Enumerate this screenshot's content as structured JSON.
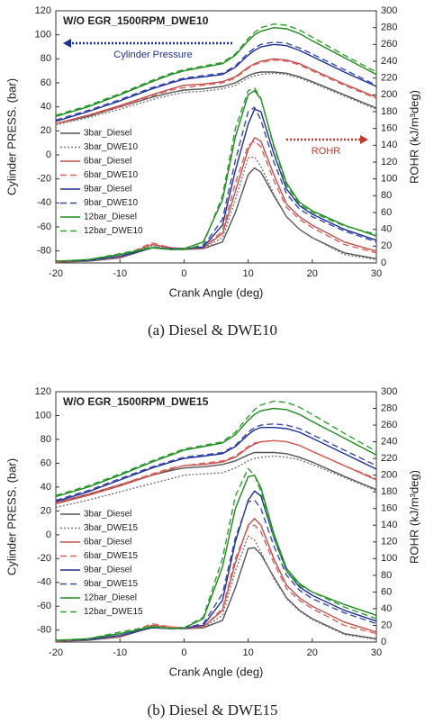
{
  "chart_data": [
    {
      "type": "line",
      "title": "W/O EGR_1500RPM_DWE10",
      "caption": "(a)  Diesel & DWE10",
      "x_label": "Crank Angle (deg)",
      "y_label": "Cylinder PRESS. (bar)",
      "y2_label": "ROHR (kJ/m³deg)",
      "xlim": [
        -20,
        30
      ],
      "xticks": [
        -20,
        -10,
        0,
        10,
        20,
        30
      ],
      "ylim": [
        -90,
        120
      ],
      "yticks": [
        -80,
        -60,
        -40,
        -20,
        0,
        20,
        40,
        60,
        80,
        100,
        120
      ],
      "y2lim": [
        0,
        300
      ],
      "y2ticks": [
        0,
        20,
        40,
        60,
        80,
        100,
        120,
        140,
        160,
        180,
        200,
        220,
        240,
        260,
        280,
        300
      ],
      "grid": false,
      "legend": "left",
      "annotations": [
        {
          "text": "Cylinder Pressure",
          "color": "#1f2f9a",
          "direction": "left"
        },
        {
          "text": "ROHR",
          "color": "#c0392b",
          "direction": "right"
        }
      ],
      "x": [
        -20,
        -15,
        -10,
        -5,
        -2,
        0,
        3,
        6,
        8,
        10,
        11,
        12,
        14,
        16,
        18,
        20,
        25,
        30
      ],
      "series": [
        {
          "name": "3bar_Diesel",
          "color": "#555555",
          "dash": "solid",
          "values": [
            26,
            32,
            40,
            48,
            52,
            54,
            55,
            57,
            60,
            66,
            68,
            69,
            69,
            68,
            65,
            61,
            50,
            39
          ],
          "y2_values": [
            1,
            2,
            6,
            18,
            16,
            16,
            17,
            25,
            60,
            105,
            113,
            108,
            80,
            55,
            40,
            30,
            12,
            5
          ]
        },
        {
          "name": "3bar_DWE10",
          "color": "#777777",
          "dash": "dotted",
          "values": [
            25,
            31,
            38,
            46,
            50,
            52,
            53,
            55,
            58,
            64,
            66,
            67,
            68,
            67,
            64,
            60,
            49,
            38
          ],
          "y2_values": [
            1,
            2,
            6,
            20,
            17,
            16,
            17,
            30,
            75,
            125,
            126,
            115,
            82,
            55,
            40,
            30,
            10,
            4
          ]
        },
        {
          "name": "6bar_Diesel",
          "color": "#c0504d",
          "dash": "solid",
          "values": [
            26,
            33,
            41,
            50,
            55,
            58,
            59,
            61,
            65,
            73,
            76,
            78,
            80,
            79,
            76,
            71,
            59,
            48
          ],
          "y2_values": [
            1,
            3,
            7,
            22,
            18,
            17,
            18,
            35,
            85,
            135,
            149,
            145,
            105,
            70,
            55,
            45,
            25,
            14
          ]
        },
        {
          "name": "6bar_DWE10",
          "color": "#e0605a",
          "dash": "dashed",
          "values": [
            26,
            33,
            40,
            49,
            54,
            56,
            58,
            60,
            64,
            72,
            75,
            77,
            79,
            78,
            75,
            70,
            58,
            47
          ],
          "y2_values": [
            1,
            3,
            7,
            24,
            18,
            17,
            18,
            38,
            95,
            140,
            145,
            138,
            98,
            66,
            52,
            42,
            22,
            12
          ]
        },
        {
          "name": "9bar_Diesel",
          "color": "#1f2f9a",
          "dash": "solid",
          "values": [
            28,
            36,
            45,
            55,
            60,
            63,
            65,
            67,
            73,
            83,
            87,
            90,
            92,
            91,
            87,
            82,
            69,
            57
          ],
          "y2_values": [
            2,
            3,
            8,
            18,
            17,
            17,
            19,
            45,
            110,
            165,
            183,
            180,
            130,
            88,
            68,
            58,
            40,
            27
          ]
        },
        {
          "name": "9bar_DWE10",
          "color": "#3a4aaa",
          "dash": "dashed",
          "values": [
            29,
            37,
            46,
            56,
            61,
            64,
            66,
            68,
            74,
            85,
            89,
            92,
            94,
            93,
            89,
            84,
            71,
            58
          ],
          "y2_values": [
            2,
            3,
            8,
            19,
            17,
            17,
            20,
            52,
            122,
            180,
            185,
            170,
            120,
            82,
            64,
            55,
            38,
            25
          ]
        },
        {
          "name": "12bar_Diesel",
          "color": "#1e8a1e",
          "dash": "solid",
          "values": [
            32,
            40,
            50,
            61,
            67,
            70,
            73,
            76,
            83,
            95,
            100,
            103,
            106,
            105,
            101,
            95,
            81,
            67
          ],
          "y2_values": [
            2,
            4,
            10,
            18,
            16,
            17,
            25,
            75,
            150,
            200,
            205,
            195,
            140,
            95,
            72,
            62,
            45,
            32
          ]
        },
        {
          "name": "12bar_DWE10",
          "color": "#2ea02e",
          "dash": "dashed",
          "values": [
            33,
            41,
            51,
            62,
            68,
            71,
            74,
            77,
            84,
            97,
            102,
            106,
            109,
            108,
            104,
            98,
            83,
            69
          ],
          "y2_values": [
            2,
            4,
            11,
            19,
            16,
            16,
            22,
            80,
            160,
            205,
            208,
            196,
            138,
            92,
            70,
            60,
            44,
            34
          ]
        }
      ]
    },
    {
      "type": "line",
      "title": "W/O EGR_1500RPM_DWE15",
      "caption": "(b)  Diesel & DWE15",
      "x_label": "Crank Angle (deg)",
      "y_label": "Cylinder PRESS. (bar)",
      "y2_label": "ROHR (kJ/m³deg)",
      "xlim": [
        -20,
        30
      ],
      "xticks": [
        -20,
        -10,
        0,
        10,
        20,
        30
      ],
      "ylim": [
        -90,
        120
      ],
      "yticks": [
        -80,
        -60,
        -40,
        -20,
        0,
        20,
        40,
        60,
        80,
        100,
        120
      ],
      "y2lim": [
        0,
        300
      ],
      "y2ticks": [
        0,
        20,
        40,
        60,
        80,
        100,
        120,
        140,
        160,
        180,
        200,
        220,
        240,
        260,
        280,
        300
      ],
      "grid": false,
      "legend": "left",
      "x": [
        -20,
        -15,
        -10,
        -5,
        -2,
        0,
        3,
        6,
        8,
        10,
        11,
        12,
        14,
        16,
        18,
        20,
        25,
        30
      ],
      "series": [
        {
          "name": "3bar_Diesel",
          "color": "#555555",
          "dash": "solid",
          "values": [
            27,
            34,
            42,
            50,
            54,
            56,
            57,
            59,
            62,
            67,
            69,
            69,
            69,
            68,
            65,
            61,
            49,
            38
          ],
          "y2_values": [
            1,
            2,
            6,
            18,
            16,
            16,
            17,
            26,
            65,
            112,
            113,
            105,
            78,
            53,
            38,
            28,
            10,
            4
          ]
        },
        {
          "name": "3bar_DWE15",
          "color": "#777777",
          "dash": "dotted",
          "values": [
            23,
            29,
            36,
            43,
            47,
            50,
            51,
            52,
            56,
            62,
            64,
            65,
            66,
            65,
            63,
            59,
            48,
            37
          ],
          "y2_values": [
            1,
            2,
            6,
            20,
            17,
            16,
            17,
            32,
            85,
            127,
            122,
            108,
            76,
            52,
            37,
            27,
            9,
            3
          ]
        },
        {
          "name": "6bar_Diesel",
          "color": "#c0504d",
          "dash": "solid",
          "values": [
            26,
            33,
            41,
            50,
            55,
            58,
            59,
            61,
            65,
            73,
            76,
            78,
            79,
            78,
            75,
            70,
            58,
            46
          ],
          "y2_values": [
            1,
            3,
            7,
            20,
            18,
            17,
            18,
            38,
            95,
            140,
            148,
            140,
            100,
            68,
            53,
            43,
            24,
            12
          ]
        },
        {
          "name": "6bar_DWE15",
          "color": "#e0605a",
          "dash": "dashed",
          "values": [
            27,
            34,
            42,
            51,
            56,
            58,
            60,
            62,
            66,
            74,
            77,
            78,
            79,
            78,
            75,
            70,
            58,
            47
          ],
          "y2_values": [
            1,
            3,
            7,
            22,
            18,
            17,
            18,
            40,
            100,
            138,
            140,
            132,
            95,
            64,
            50,
            40,
            20,
            10
          ]
        },
        {
          "name": "9bar_Diesel",
          "color": "#1f2f9a",
          "dash": "solid",
          "values": [
            28,
            36,
            46,
            56,
            61,
            64,
            66,
            68,
            74,
            84,
            88,
            90,
            90,
            89,
            86,
            81,
            68,
            55
          ],
          "y2_values": [
            2,
            3,
            8,
            17,
            16,
            17,
            20,
            50,
            120,
            170,
            181,
            175,
            125,
            85,
            66,
            56,
            38,
            25
          ]
        },
        {
          "name": "9bar_DWE15",
          "color": "#3a4aaa",
          "dash": "dashed",
          "values": [
            29,
            37,
            47,
            57,
            62,
            65,
            67,
            69,
            75,
            86,
            90,
            92,
            93,
            92,
            89,
            84,
            71,
            58
          ],
          "y2_values": [
            2,
            3,
            8,
            18,
            16,
            17,
            22,
            58,
            125,
            168,
            170,
            160,
            115,
            80,
            62,
            52,
            35,
            22
          ]
        },
        {
          "name": "12bar_Diesel",
          "color": "#1e8a1e",
          "dash": "solid",
          "values": [
            32,
            40,
            50,
            61,
            67,
            71,
            74,
            77,
            84,
            96,
            101,
            104,
            106,
            105,
            101,
            95,
            81,
            67
          ],
          "y2_values": [
            2,
            4,
            10,
            18,
            16,
            17,
            28,
            90,
            160,
            198,
            200,
            185,
            130,
            88,
            70,
            60,
            45,
            32
          ]
        },
        {
          "name": "12bar_DWE15",
          "color": "#2ea02e",
          "dash": "dashed",
          "values": [
            33,
            41,
            51,
            62,
            68,
            72,
            75,
            78,
            86,
            99,
            105,
            109,
            112,
            111,
            107,
            101,
            85,
            70
          ],
          "y2_values": [
            2,
            4,
            12,
            19,
            16,
            17,
            30,
            100,
            175,
            208,
            200,
            180,
            125,
            85,
            68,
            60,
            42,
            28
          ]
        }
      ]
    }
  ]
}
